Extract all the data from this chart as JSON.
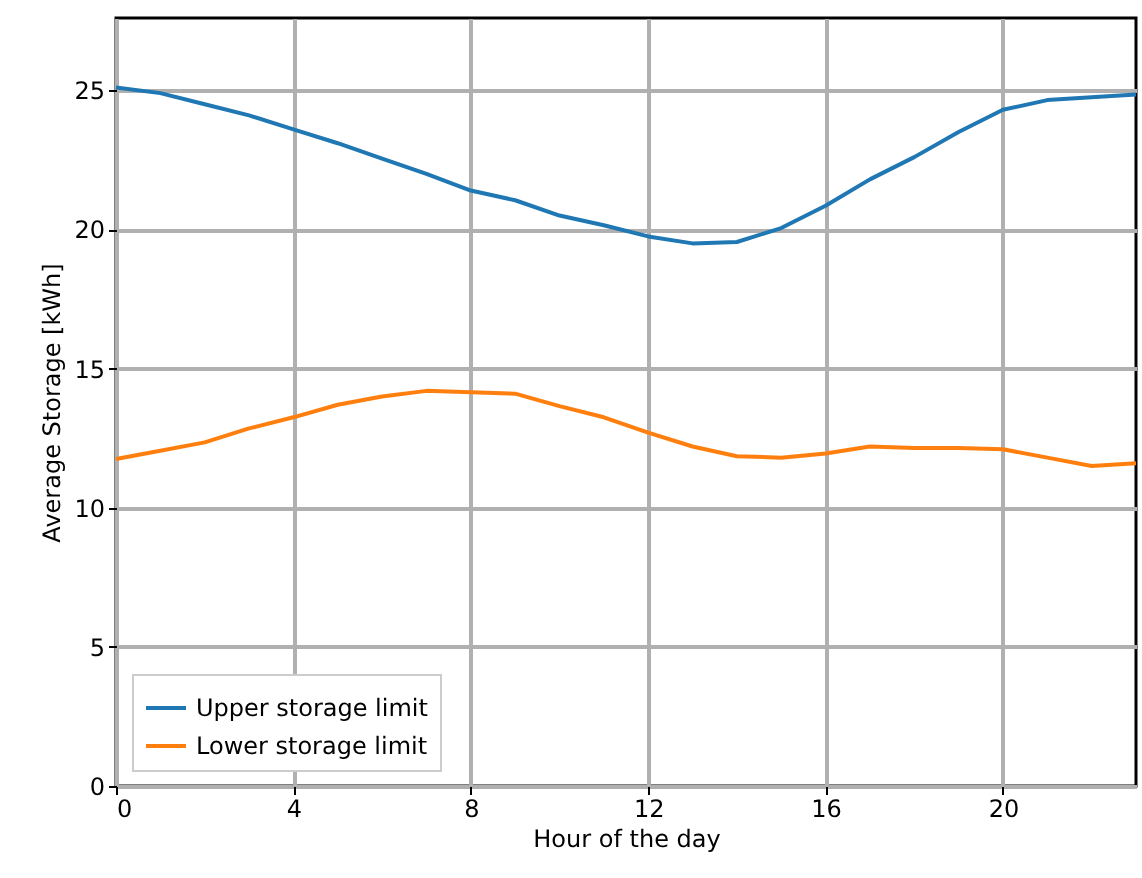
{
  "chart_data": {
    "type": "line",
    "xlabel": "Hour of the day",
    "ylabel": "Average Storage [kWh]",
    "x": [
      0,
      1,
      2,
      3,
      4,
      5,
      6,
      7,
      8,
      9,
      10,
      11,
      12,
      13,
      14,
      15,
      16,
      17,
      18,
      19,
      20,
      21,
      22,
      23
    ],
    "series": [
      {
        "name": "Upper storage limit",
        "color": "#1f77b4",
        "values": [
          25.1,
          24.9,
          24.5,
          24.1,
          23.6,
          23.1,
          22.55,
          22.0,
          21.4,
          21.05,
          20.5,
          20.15,
          19.75,
          19.5,
          19.55,
          20.05,
          20.85,
          21.8,
          22.6,
          23.5,
          24.3,
          24.65,
          24.75,
          24.85
        ]
      },
      {
        "name": "Lower storage limit",
        "color": "#ff7f0e",
        "values": [
          11.75,
          12.05,
          12.35,
          12.85,
          13.25,
          13.7,
          14.0,
          14.2,
          14.15,
          14.1,
          13.65,
          13.25,
          12.7,
          12.2,
          11.85,
          11.8,
          11.95,
          12.2,
          12.15,
          12.15,
          12.1,
          11.8,
          11.5,
          11.6
        ]
      }
    ],
    "xlim": [
      0,
      23
    ],
    "xticks": [
      0,
      4,
      8,
      12,
      16,
      20
    ],
    "ylim": [
      0,
      27.6
    ],
    "yticks": [
      0,
      5,
      10,
      15,
      20,
      25
    ],
    "grid": true,
    "legend": "bottom left",
    "marker": "none",
    "line_style": "solid"
  }
}
